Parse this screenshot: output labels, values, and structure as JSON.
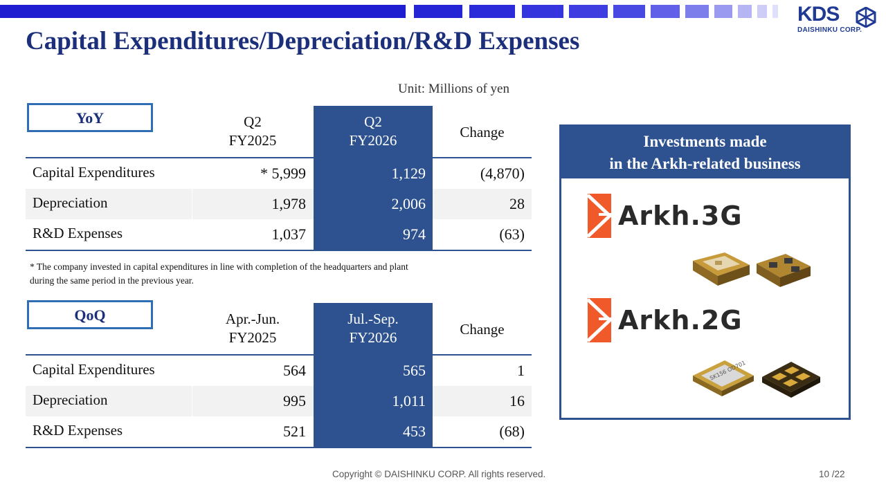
{
  "header": {
    "title": "Capital Expenditures/Depreciation/R&D Expenses",
    "logo_text": "KDS",
    "logo_subtext": "DAISHINKU CORP."
  },
  "unit": "Unit: Millions of yen",
  "yoy": {
    "label": "YoY",
    "col1": [
      "Q2",
      "FY2025"
    ],
    "col2": [
      "Q2",
      "FY2026"
    ],
    "col3": "Change",
    "rows": [
      {
        "name": "Capital Expenditures",
        "v1": "* 5,999",
        "v2": "1,129",
        "v3": "(4,870)"
      },
      {
        "name": "Depreciation",
        "v1": "1,978",
        "v2": "2,006",
        "v3": "28"
      },
      {
        "name": "R&D Expenses",
        "v1": "1,037",
        "v2": "974",
        "v3": "(63)"
      }
    ]
  },
  "footnote": [
    "* The company invested in capital expenditures in line with completion of the headquarters and plant",
    "during the same period in the previous year."
  ],
  "qoq": {
    "label": "QoQ",
    "col1": [
      "Apr.-Jun.",
      "FY2025"
    ],
    "col2": [
      "Jul.-Sep.",
      "FY2026"
    ],
    "col3": "Change",
    "rows": [
      {
        "name": "Capital Expenditures",
        "v1": "564",
        "v2": "565",
        "v3": "1"
      },
      {
        "name": "Depreciation",
        "v1": "995",
        "v2": "1,011",
        "v3": "16"
      },
      {
        "name": "R&D Expenses",
        "v1": "521",
        "v2": "453",
        "v3": "(68)"
      }
    ]
  },
  "panel": {
    "title": [
      "Investments made",
      "in the Arkh-related business"
    ],
    "brands": [
      {
        "name": "Arkh.3G",
        "icon": "arkh-logo-icon",
        "chip_label": ""
      },
      {
        "name": "Arkh.2G",
        "icon": "arkh-logo-icon",
        "chip_label": "SK156 OD701"
      }
    ]
  },
  "footer": {
    "copyright": "Copyright © DAISHINKU CORP. All rights reserved.",
    "page": "10 /22"
  },
  "colors": {
    "navy": "#1c2f7a",
    "table_blue": "#2e528f",
    "accent_orange": "#f0592a",
    "box_border": "#2f6db5"
  }
}
